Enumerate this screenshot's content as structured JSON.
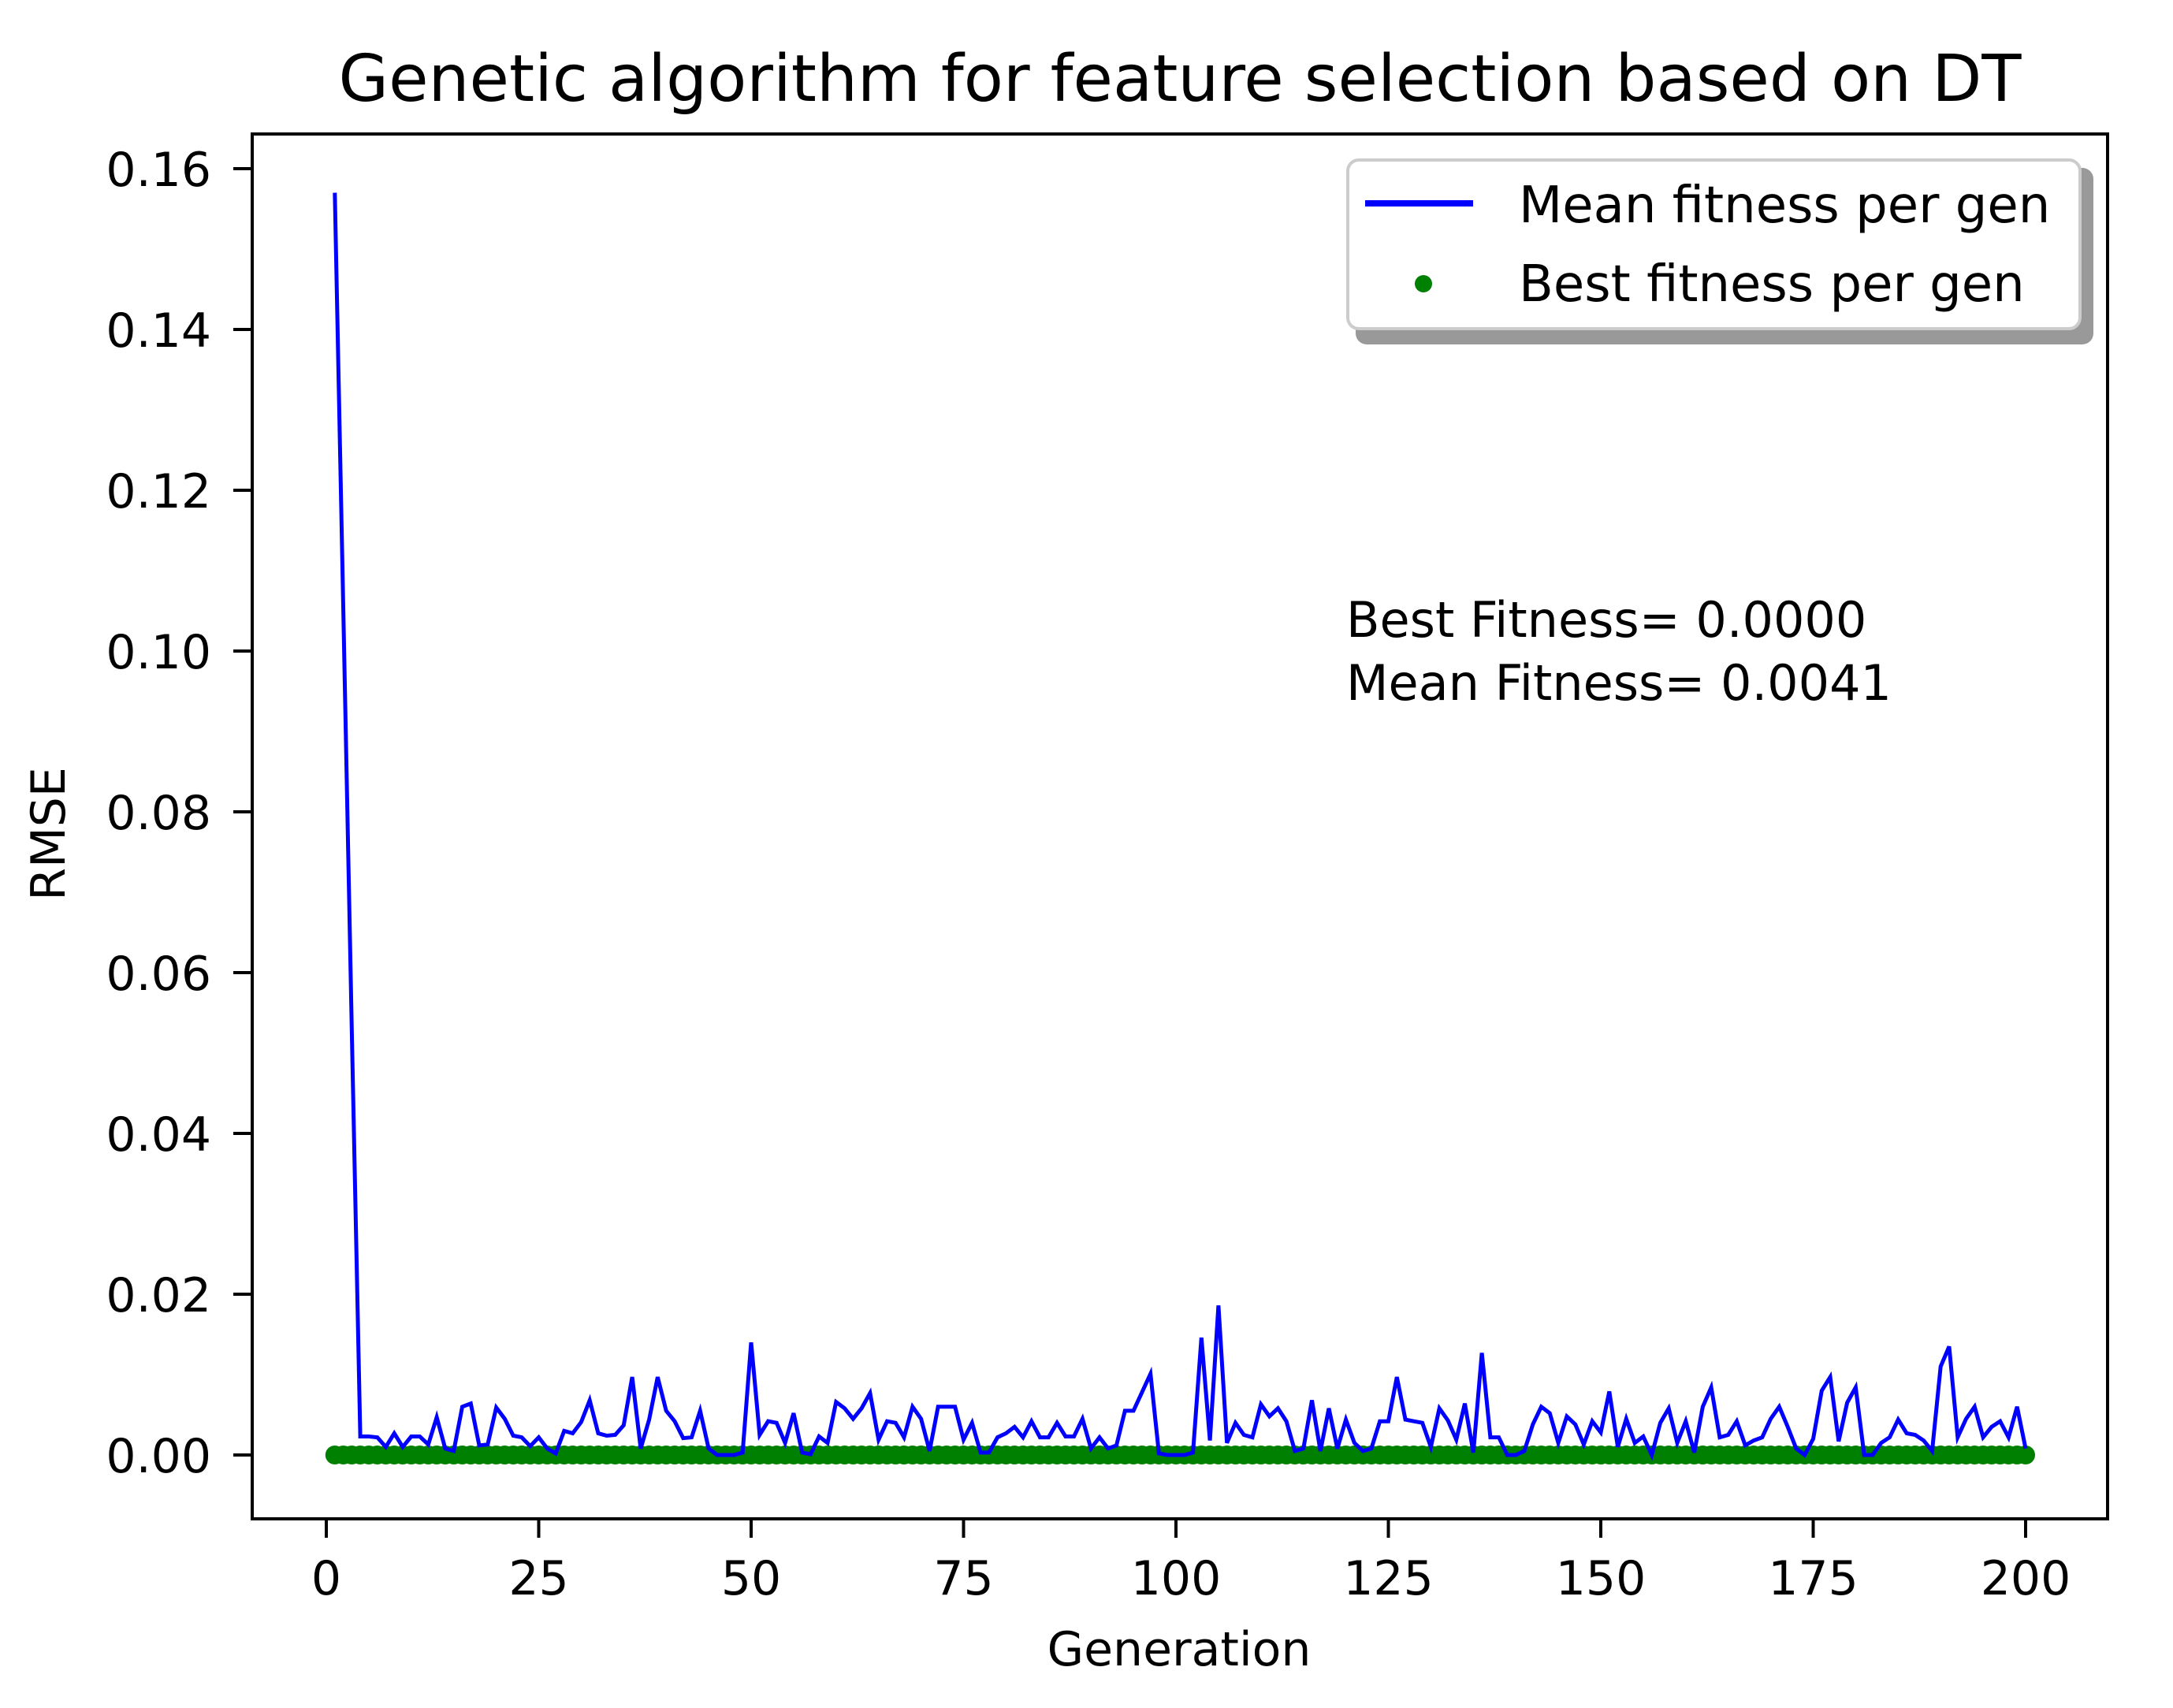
{
  "chart_data": {
    "type": "line",
    "title": "Genetic algorithm for feature selection based on DT",
    "xlabel": "Generation",
    "ylabel": "RMSE",
    "xlim": [
      -9.5,
      209
    ],
    "ylim": [
      -0.0079,
      0.1653
    ],
    "xticks": [
      0,
      25,
      50,
      75,
      100,
      125,
      150,
      175,
      200
    ],
    "xtick_labels": [
      "0",
      "25",
      "50",
      "75",
      "100",
      "125",
      "150",
      "175",
      "200"
    ],
    "yticks": [
      0.0,
      0.02,
      0.04,
      0.06,
      0.08,
      0.1,
      0.12,
      0.14,
      0.16
    ],
    "ytick_labels": [
      "0.00",
      "0.02",
      "0.04",
      "0.06",
      "0.08",
      "0.10",
      "0.12",
      "0.14",
      "0.16"
    ],
    "grid": false,
    "legend_position": "upper right",
    "legend": [
      "Mean fitness per gen",
      "Best fitness per gen"
    ],
    "annotations": [
      "Best Fitness= 0.0000",
      "Mean Fitness= 0.0041"
    ],
    "x_start": 1,
    "series": [
      {
        "name": "Mean fitness per gen",
        "style": "line",
        "color": "#0000ff",
        "values": [
          0.157,
          0.105,
          0.053,
          0.0023,
          0.0023,
          0.0022,
          0.001,
          0.0027,
          0.001,
          0.0023,
          0.0023,
          0.0013,
          0.0047,
          0.0008,
          0.0005,
          0.006,
          0.0064,
          0.0012,
          0.0013,
          0.0059,
          0.0045,
          0.0024,
          0.0022,
          0.0011,
          0.0022,
          0.0008,
          0.0002,
          0.003,
          0.0027,
          0.0041,
          0.0068,
          0.0027,
          0.0024,
          0.0025,
          0.0037,
          0.0097,
          0.0008,
          0.0044,
          0.0097,
          0.0055,
          0.0042,
          0.0021,
          0.0022,
          0.0055,
          0.0008,
          0.0,
          0.0,
          0.0,
          0.0003,
          0.014,
          0.0025,
          0.0042,
          0.004,
          0.0015,
          0.0052,
          0.0003,
          0.0001,
          0.0023,
          0.0015,
          0.0066,
          0.0058,
          0.0045,
          0.0058,
          0.0077,
          0.0019,
          0.0042,
          0.004,
          0.0022,
          0.006,
          0.0045,
          0.0005,
          0.006,
          0.006,
          0.006,
          0.0019,
          0.004,
          0.0003,
          0.0003,
          0.0022,
          0.0027,
          0.0035,
          0.0022,
          0.0042,
          0.0022,
          0.0022,
          0.004,
          0.0023,
          0.0023,
          0.0045,
          0.0008,
          0.0022,
          0.0008,
          0.0012,
          0.0055,
          0.0055,
          0.0078,
          0.0101,
          0.0002,
          0.0,
          0.0,
          0.0,
          0.0003,
          0.0146,
          0.0018,
          0.0186,
          0.0015,
          0.004,
          0.0025,
          0.0022,
          0.0063,
          0.0048,
          0.0058,
          0.0042,
          0.0005,
          0.0008,
          0.0068,
          0.0005,
          0.0058,
          0.0008,
          0.0044,
          0.0015,
          0.0005,
          0.0008,
          0.0042,
          0.0042,
          0.0097,
          0.0044,
          0.0042,
          0.004,
          0.001,
          0.0058,
          0.0043,
          0.0019,
          0.0064,
          0.0003,
          0.0127,
          0.0022,
          0.0022,
          0.0,
          0.0,
          0.0005,
          0.0038,
          0.006,
          0.0052,
          0.0015,
          0.0048,
          0.0038,
          0.0013,
          0.0042,
          0.0028,
          0.0079,
          0.001,
          0.0045,
          0.0015,
          0.0023,
          0.0,
          0.004,
          0.0058,
          0.0015,
          0.0042,
          0.0003,
          0.006,
          0.0084,
          0.0022,
          0.0025,
          0.0042,
          0.0012,
          0.0018,
          0.0022,
          0.0045,
          0.006,
          0.0035,
          0.0008,
          0.0,
          0.002,
          0.008,
          0.0097,
          0.0017,
          0.0065,
          0.0084,
          0.0,
          0.0,
          0.0015,
          0.0022,
          0.0044,
          0.0027,
          0.0025,
          0.0018,
          0.0005,
          0.011,
          0.0135,
          0.0022,
          0.0045,
          0.006,
          0.0022,
          0.0035,
          0.0042,
          0.0022,
          0.006,
          0.0008
        ]
      },
      {
        "name": "Best fitness per gen",
        "style": "points",
        "color": "#008000",
        "values_constant": 0.0,
        "count": 200
      }
    ]
  }
}
